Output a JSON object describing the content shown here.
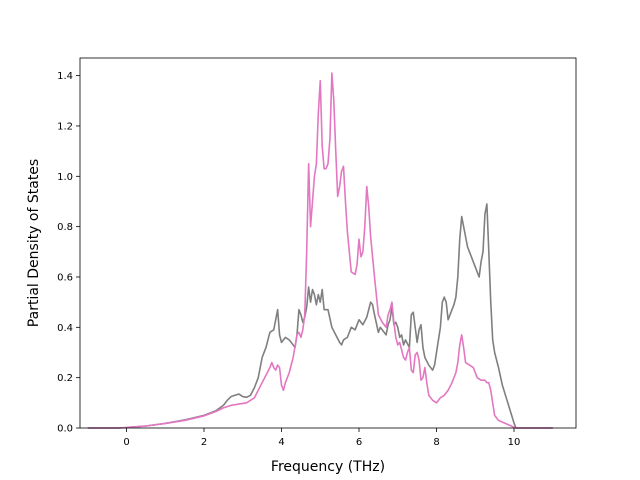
{
  "chart_data": {
    "type": "line",
    "title": "",
    "xlabel": "Frequency (THz)",
    "ylabel": "Partial Density of States",
    "xlim": [
      -1.2,
      11.6
    ],
    "ylim": [
      0,
      1.47
    ],
    "xticks": [
      0,
      2,
      4,
      6,
      8,
      10
    ],
    "yticks": [
      0.0,
      0.2,
      0.4,
      0.6,
      0.8,
      1.0,
      1.2,
      1.4
    ],
    "grid": false,
    "legend": "none",
    "series": [
      {
        "color": "#7f7f7f",
        "points": [
          [
            -1.0,
            0
          ],
          [
            -0.2,
            0
          ],
          [
            0.0,
            0.002
          ],
          [
            0.5,
            0.008
          ],
          [
            1.0,
            0.018
          ],
          [
            1.5,
            0.032
          ],
          [
            2.0,
            0.05
          ],
          [
            2.3,
            0.068
          ],
          [
            2.5,
            0.09
          ],
          [
            2.6,
            0.11
          ],
          [
            2.7,
            0.125
          ],
          [
            2.8,
            0.13
          ],
          [
            2.9,
            0.135
          ],
          [
            3.0,
            0.125
          ],
          [
            3.1,
            0.122
          ],
          [
            3.2,
            0.13
          ],
          [
            3.3,
            0.16
          ],
          [
            3.4,
            0.2
          ],
          [
            3.5,
            0.28
          ],
          [
            3.6,
            0.32
          ],
          [
            3.7,
            0.38
          ],
          [
            3.8,
            0.39
          ],
          [
            3.85,
            0.43
          ],
          [
            3.9,
            0.47
          ],
          [
            3.95,
            0.37
          ],
          [
            4.0,
            0.34
          ],
          [
            4.1,
            0.36
          ],
          [
            4.2,
            0.35
          ],
          [
            4.3,
            0.33
          ],
          [
            4.35,
            0.32
          ],
          [
            4.4,
            0.37
          ],
          [
            4.45,
            0.47
          ],
          [
            4.5,
            0.45
          ],
          [
            4.55,
            0.42
          ],
          [
            4.6,
            0.44
          ],
          [
            4.65,
            0.48
          ],
          [
            4.7,
            0.56
          ],
          [
            4.75,
            0.5
          ],
          [
            4.8,
            0.55
          ],
          [
            4.85,
            0.53
          ],
          [
            4.9,
            0.49
          ],
          [
            4.95,
            0.53
          ],
          [
            5.0,
            0.5
          ],
          [
            5.05,
            0.55
          ],
          [
            5.1,
            0.47
          ],
          [
            5.2,
            0.47
          ],
          [
            5.3,
            0.4
          ],
          [
            5.4,
            0.37
          ],
          [
            5.5,
            0.34
          ],
          [
            5.55,
            0.33
          ],
          [
            5.6,
            0.35
          ],
          [
            5.7,
            0.36
          ],
          [
            5.8,
            0.4
          ],
          [
            5.9,
            0.39
          ],
          [
            6.0,
            0.43
          ],
          [
            6.1,
            0.41
          ],
          [
            6.2,
            0.44
          ],
          [
            6.3,
            0.5
          ],
          [
            6.35,
            0.49
          ],
          [
            6.4,
            0.45
          ],
          [
            6.5,
            0.38
          ],
          [
            6.55,
            0.4
          ],
          [
            6.6,
            0.39
          ],
          [
            6.7,
            0.37
          ],
          [
            6.75,
            0.41
          ],
          [
            6.8,
            0.43
          ],
          [
            6.85,
            0.48
          ],
          [
            6.9,
            0.41
          ],
          [
            6.95,
            0.42
          ],
          [
            7.0,
            0.4
          ],
          [
            7.05,
            0.36
          ],
          [
            7.1,
            0.37
          ],
          [
            7.15,
            0.33
          ],
          [
            7.2,
            0.35
          ],
          [
            7.3,
            0.32
          ],
          [
            7.35,
            0.45
          ],
          [
            7.4,
            0.46
          ],
          [
            7.45,
            0.4
          ],
          [
            7.5,
            0.34
          ],
          [
            7.55,
            0.39
          ],
          [
            7.6,
            0.41
          ],
          [
            7.65,
            0.32
          ],
          [
            7.7,
            0.28
          ],
          [
            7.8,
            0.25
          ],
          [
            7.9,
            0.23
          ],
          [
            7.95,
            0.25
          ],
          [
            8.0,
            0.3
          ],
          [
            8.1,
            0.4
          ],
          [
            8.15,
            0.5
          ],
          [
            8.2,
            0.52
          ],
          [
            8.25,
            0.5
          ],
          [
            8.3,
            0.43
          ],
          [
            8.4,
            0.47
          ],
          [
            8.45,
            0.49
          ],
          [
            8.5,
            0.52
          ],
          [
            8.55,
            0.6
          ],
          [
            8.6,
            0.75
          ],
          [
            8.65,
            0.84
          ],
          [
            8.7,
            0.8
          ],
          [
            8.8,
            0.72
          ],
          [
            8.9,
            0.68
          ],
          [
            9.0,
            0.64
          ],
          [
            9.1,
            0.6
          ],
          [
            9.15,
            0.66
          ],
          [
            9.2,
            0.7
          ],
          [
            9.25,
            0.85
          ],
          [
            9.3,
            0.89
          ],
          [
            9.35,
            0.7
          ],
          [
            9.4,
            0.5
          ],
          [
            9.45,
            0.35
          ],
          [
            9.5,
            0.3
          ],
          [
            9.6,
            0.24
          ],
          [
            9.7,
            0.17
          ],
          [
            9.8,
            0.12
          ],
          [
            9.9,
            0.07
          ],
          [
            10.0,
            0.02
          ],
          [
            10.05,
            0.0
          ],
          [
            11.0,
            0
          ]
        ]
      },
      {
        "color": "#e377c2",
        "points": [
          [
            -1.0,
            0
          ],
          [
            -0.2,
            0
          ],
          [
            0.0,
            0.002
          ],
          [
            0.5,
            0.008
          ],
          [
            1.0,
            0.018
          ],
          [
            1.5,
            0.03
          ],
          [
            2.0,
            0.048
          ],
          [
            2.3,
            0.065
          ],
          [
            2.5,
            0.08
          ],
          [
            2.7,
            0.09
          ],
          [
            2.9,
            0.095
          ],
          [
            3.1,
            0.1
          ],
          [
            3.3,
            0.12
          ],
          [
            3.5,
            0.18
          ],
          [
            3.6,
            0.21
          ],
          [
            3.7,
            0.24
          ],
          [
            3.75,
            0.26
          ],
          [
            3.8,
            0.24
          ],
          [
            3.85,
            0.23
          ],
          [
            3.9,
            0.25
          ],
          [
            3.95,
            0.24
          ],
          [
            4.0,
            0.17
          ],
          [
            4.05,
            0.15
          ],
          [
            4.1,
            0.18
          ],
          [
            4.2,
            0.22
          ],
          [
            4.3,
            0.28
          ],
          [
            4.4,
            0.37
          ],
          [
            4.45,
            0.38
          ],
          [
            4.5,
            0.36
          ],
          [
            4.55,
            0.39
          ],
          [
            4.6,
            0.45
          ],
          [
            4.65,
            0.7
          ],
          [
            4.7,
            1.05
          ],
          [
            4.75,
            0.8
          ],
          [
            4.8,
            0.9
          ],
          [
            4.85,
            1.0
          ],
          [
            4.9,
            1.05
          ],
          [
            4.95,
            1.25
          ],
          [
            5.0,
            1.38
          ],
          [
            5.05,
            1.12
          ],
          [
            5.1,
            1.03
          ],
          [
            5.15,
            1.03
          ],
          [
            5.2,
            1.05
          ],
          [
            5.25,
            1.15
          ],
          [
            5.3,
            1.41
          ],
          [
            5.35,
            1.3
          ],
          [
            5.4,
            1.1
          ],
          [
            5.45,
            0.92
          ],
          [
            5.5,
            0.96
          ],
          [
            5.55,
            1.02
          ],
          [
            5.6,
            1.04
          ],
          [
            5.65,
            0.9
          ],
          [
            5.7,
            0.78
          ],
          [
            5.8,
            0.62
          ],
          [
            5.9,
            0.61
          ],
          [
            5.95,
            0.65
          ],
          [
            6.0,
            0.75
          ],
          [
            6.05,
            0.68
          ],
          [
            6.1,
            0.7
          ],
          [
            6.15,
            0.8
          ],
          [
            6.2,
            0.96
          ],
          [
            6.25,
            0.88
          ],
          [
            6.3,
            0.76
          ],
          [
            6.4,
            0.6
          ],
          [
            6.5,
            0.45
          ],
          [
            6.6,
            0.42
          ],
          [
            6.7,
            0.4
          ],
          [
            6.75,
            0.45
          ],
          [
            6.8,
            0.47
          ],
          [
            6.85,
            0.5
          ],
          [
            6.9,
            0.42
          ],
          [
            6.95,
            0.36
          ],
          [
            7.0,
            0.33
          ],
          [
            7.05,
            0.34
          ],
          [
            7.1,
            0.31
          ],
          [
            7.15,
            0.28
          ],
          [
            7.2,
            0.27
          ],
          [
            7.25,
            0.3
          ],
          [
            7.3,
            0.32
          ],
          [
            7.35,
            0.23
          ],
          [
            7.4,
            0.22
          ],
          [
            7.45,
            0.29
          ],
          [
            7.5,
            0.3
          ],
          [
            7.55,
            0.27
          ],
          [
            7.6,
            0.19
          ],
          [
            7.65,
            0.2
          ],
          [
            7.7,
            0.24
          ],
          [
            7.75,
            0.18
          ],
          [
            7.8,
            0.13
          ],
          [
            7.9,
            0.11
          ],
          [
            8.0,
            0.1
          ],
          [
            8.1,
            0.12
          ],
          [
            8.2,
            0.13
          ],
          [
            8.3,
            0.15
          ],
          [
            8.4,
            0.18
          ],
          [
            8.5,
            0.22
          ],
          [
            8.55,
            0.26
          ],
          [
            8.6,
            0.33
          ],
          [
            8.65,
            0.37
          ],
          [
            8.7,
            0.32
          ],
          [
            8.75,
            0.26
          ],
          [
            8.85,
            0.25
          ],
          [
            8.95,
            0.24
          ],
          [
            9.05,
            0.2
          ],
          [
            9.15,
            0.19
          ],
          [
            9.25,
            0.19
          ],
          [
            9.3,
            0.18
          ],
          [
            9.35,
            0.18
          ],
          [
            9.4,
            0.15
          ],
          [
            9.45,
            0.1
          ],
          [
            9.5,
            0.05
          ],
          [
            9.6,
            0.03
          ],
          [
            9.75,
            0.02
          ],
          [
            9.9,
            0.01
          ],
          [
            10.0,
            0.003
          ],
          [
            10.05,
            0
          ],
          [
            11.0,
            0
          ]
        ]
      }
    ]
  }
}
